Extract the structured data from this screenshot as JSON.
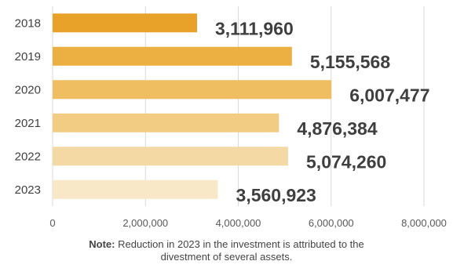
{
  "chart_data": {
    "type": "bar",
    "orientation": "horizontal",
    "title": "",
    "xlabel": "",
    "ylabel": "",
    "categories": [
      "2018",
      "2019",
      "2020",
      "2021",
      "2022",
      "2023"
    ],
    "values": [
      3111960,
      5155568,
      6007477,
      4876384,
      5074260,
      3560923
    ],
    "data_labels": [
      "3,111,960",
      "5,155,568",
      "6,007,477",
      "4,876,384",
      "5,074,260",
      "3,560,923"
    ],
    "xlim": [
      0,
      8000000
    ],
    "x_ticks": [
      0,
      2000000,
      4000000,
      6000000,
      8000000
    ],
    "x_tick_labels": [
      "0",
      "2,000,000",
      "4,000,000",
      "6,000,000",
      "8,000,000"
    ],
    "grid": "vertical",
    "legend": "none",
    "bar_colors": [
      "#E8A22A",
      "#EBB041",
      "#EEBE61",
      "#F2CC83",
      "#F4D9A4",
      "#F8E8C8"
    ],
    "label_color": "#3F3F3F"
  },
  "note": {
    "label": "Note:",
    "line1": "Reduction in 2023 in the investment is attributed to the",
    "line2": "divestment of several assets."
  }
}
